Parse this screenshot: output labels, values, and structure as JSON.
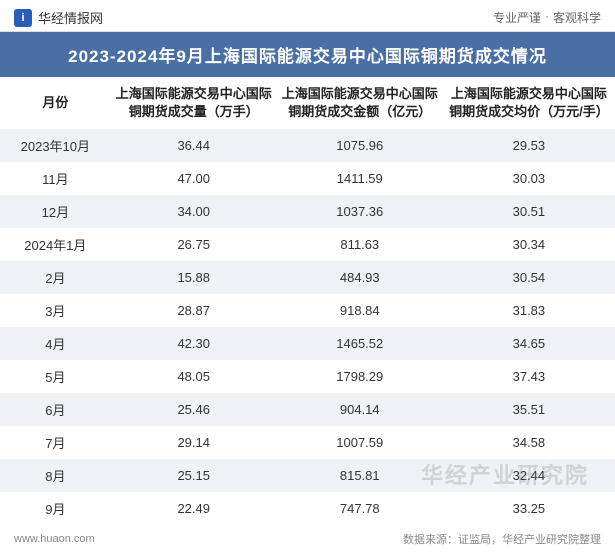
{
  "header": {
    "site_name": "华经情报网",
    "logo_letter": "i",
    "tagline_a": "专业严谨",
    "tagline_sep": "·",
    "tagline_b": "客观科学"
  },
  "title": "2023-2024年9月上海国际能源交易中心国际铜期货成交情况",
  "table": {
    "columns": [
      "月份",
      "上海国际能源交易中心国际铜期货成交量（万手）",
      "上海国际能源交易中心国际铜期货成交金额（亿元）",
      "上海国际能源交易中心国际铜期货成交均价（万元/手）"
    ],
    "rows": [
      [
        "2023年10月",
        "36.44",
        "1075.96",
        "29.53"
      ],
      [
        "11月",
        "47.00",
        "1411.59",
        "30.03"
      ],
      [
        "12月",
        "34.00",
        "1037.36",
        "30.51"
      ],
      [
        "2024年1月",
        "26.75",
        "811.63",
        "30.34"
      ],
      [
        "2月",
        "15.88",
        "484.93",
        "30.54"
      ],
      [
        "3月",
        "28.87",
        "918.84",
        "31.83"
      ],
      [
        "4月",
        "42.30",
        "1465.52",
        "34.65"
      ],
      [
        "5月",
        "48.05",
        "1798.29",
        "37.43"
      ],
      [
        "6月",
        "25.46",
        "904.14",
        "35.51"
      ],
      [
        "7月",
        "29.14",
        "1007.59",
        "34.58"
      ],
      [
        "8月",
        "25.15",
        "815.81",
        "32.44"
      ],
      [
        "9月",
        "22.49",
        "747.78",
        "33.25"
      ]
    ]
  },
  "footer": {
    "site_url": "www.huaon.com",
    "source_label": "数据来源：",
    "source_text": "证监局，华经产业研究院整理"
  },
  "watermark": "华经产业研究院",
  "style": {
    "type": "table",
    "title_bg": "#4a6fa5",
    "title_color": "#ffffff",
    "row_even_bg": "#eef1f6",
    "row_odd_bg": "#ffffff",
    "header_text_color": "#222222",
    "body_text_color": "#333333",
    "footer_text_color": "#888888",
    "watermark_color": "rgba(120,120,120,0.25)",
    "title_fontsize": 17,
    "header_fontsize": 13,
    "body_fontsize": 13,
    "footer_fontsize": 11,
    "col_widths_pct": [
      18,
      27,
      27,
      28
    ]
  }
}
